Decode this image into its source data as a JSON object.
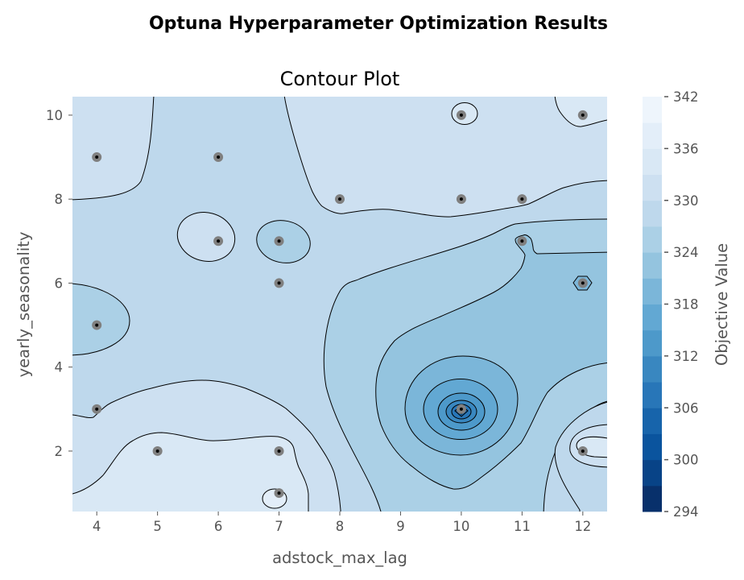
{
  "suptitle": "Optuna Hyperparameter Optimization Results",
  "chart_data": {
    "type": "contour",
    "title": "Contour Plot",
    "xlabel": "adstock_max_lag",
    "ylabel": "yearly_seasonality",
    "xlim": [
      3.6,
      12.4
    ],
    "ylim": [
      0.56,
      10.44
    ],
    "xticks": [
      4,
      5,
      6,
      7,
      8,
      9,
      10,
      11,
      12
    ],
    "yticks": [
      2,
      4,
      6,
      8,
      10
    ],
    "grid": false,
    "colorbar": {
      "label": "Objective Value",
      "range": [
        294,
        342
      ],
      "ticks": [
        294,
        300,
        306,
        312,
        318,
        324,
        330,
        336,
        342
      ],
      "levels": [
        294,
        297,
        300,
        303,
        306,
        309,
        312,
        315,
        318,
        321,
        324,
        327,
        330,
        333,
        336,
        339,
        342
      ],
      "colors": [
        "#08306b",
        "#084387",
        "#0a549e",
        "#1764ab",
        "#2876b8",
        "#3987c0",
        "#4d99ca",
        "#62a8d3",
        "#7bb6d9",
        "#94c4df",
        "#abd0e6",
        "#bed8ec",
        "#cde0f1",
        "#d9e8f5",
        "#e3eef9",
        "#eef5fc"
      ]
    },
    "trials": [
      {
        "x": 4,
        "y": 9
      },
      {
        "x": 6,
        "y": 9
      },
      {
        "x": 8,
        "y": 8
      },
      {
        "x": 10,
        "y": 8
      },
      {
        "x": 11,
        "y": 8
      },
      {
        "x": 10,
        "y": 10
      },
      {
        "x": 12,
        "y": 10
      },
      {
        "x": 6,
        "y": 7
      },
      {
        "x": 7,
        "y": 7
      },
      {
        "x": 11,
        "y": 7
      },
      {
        "x": 7,
        "y": 6
      },
      {
        "x": 12,
        "y": 6
      },
      {
        "x": 4,
        "y": 5
      },
      {
        "x": 4,
        "y": 3
      },
      {
        "x": 10,
        "y": 3
      },
      {
        "x": 5,
        "y": 2
      },
      {
        "x": 7,
        "y": 2
      },
      {
        "x": 12,
        "y": 2
      },
      {
        "x": 7,
        "y": 1
      }
    ],
    "minimum": {
      "x": 10,
      "y": 3
    }
  }
}
